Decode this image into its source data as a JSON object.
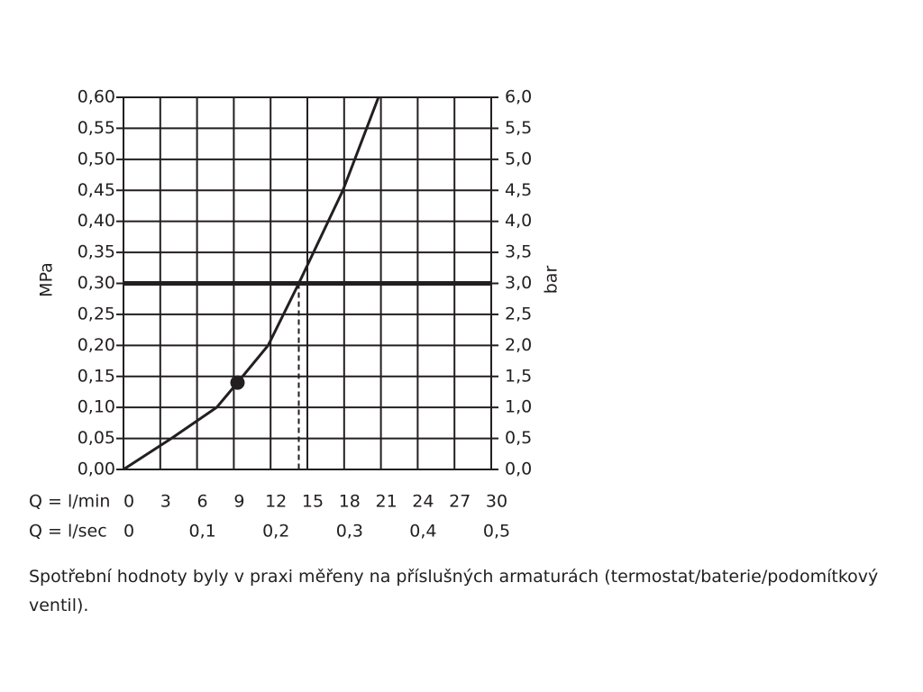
{
  "chart_data": {
    "type": "line",
    "ylabel": "MPa",
    "y2label": "bar",
    "xlabel": "Q = l/min",
    "x2label": "Q = l/sec",
    "xlim": [
      0,
      30
    ],
    "xticks": [
      0,
      3,
      6,
      9,
      12,
      15,
      18,
      21,
      24,
      27,
      30
    ],
    "x2lim": [
      0,
      0.5
    ],
    "x2ticks": [
      0,
      {
        "value": 0.1,
        "label": "0,1"
      },
      {
        "value": 0.2,
        "label": "0,2"
      },
      {
        "value": 0.3,
        "label": "0,3"
      },
      {
        "value": 0.4,
        "label": "0,4"
      },
      {
        "value": 0.5,
        "label": "0,5"
      }
    ],
    "ylim": [
      0,
      0.6
    ],
    "yticks": [
      {
        "value": 0,
        "label": "0,00"
      },
      {
        "value": 0.05,
        "label": "0,05"
      },
      {
        "value": 0.1,
        "label": "0,10"
      },
      {
        "value": 0.15,
        "label": "0,15"
      },
      {
        "value": 0.2,
        "label": "0,20"
      },
      {
        "value": 0.25,
        "label": "0,25"
      },
      {
        "value": 0.3,
        "label": "0,30"
      },
      {
        "value": 0.35,
        "label": "0,35"
      },
      {
        "value": 0.4,
        "label": "0,40"
      },
      {
        "value": 0.45,
        "label": "0,45"
      },
      {
        "value": 0.5,
        "label": "0,50"
      },
      {
        "value": 0.55,
        "label": "0,55"
      },
      {
        "value": 0.6,
        "label": "0,60"
      }
    ],
    "y2lim": [
      0,
      6
    ],
    "y2ticks": [
      {
        "value": 0,
        "label": "0,0"
      },
      {
        "value": 0.5,
        "label": "0,5"
      },
      {
        "value": 1,
        "label": "1,0"
      },
      {
        "value": 1.5,
        "label": "1,5"
      },
      {
        "value": 2,
        "label": "2,0"
      },
      {
        "value": 2.5,
        "label": "2,5"
      },
      {
        "value": 3,
        "label": "3,0"
      },
      {
        "value": 3.5,
        "label": "3,5"
      },
      {
        "value": 4,
        "label": "4,0"
      },
      {
        "value": 4.5,
        "label": "4,5"
      },
      {
        "value": 5,
        "label": "5,0"
      },
      {
        "value": 5.5,
        "label": "5,5"
      },
      {
        "value": 6,
        "label": "6,0"
      }
    ],
    "series": [
      {
        "color": "#231f20",
        "x": [
          0,
          3.9,
          7.6,
          9.3,
          11.8,
          14.3,
          17.9,
          20.8
        ],
        "values": [
          0,
          0.05,
          0.1,
          0.14,
          0.2,
          0.3,
          0.45,
          0.6
        ]
      }
    ],
    "reference_line": {
      "value": 0.3,
      "x": 14.3
    },
    "marker": {
      "x": 9.3,
      "value": 0.14
    },
    "grid": true
  },
  "caption": "Spotřební hodnoty byly v praxi měřeny na příslušných armaturách (termostat/baterie/podomítkový ventil)."
}
